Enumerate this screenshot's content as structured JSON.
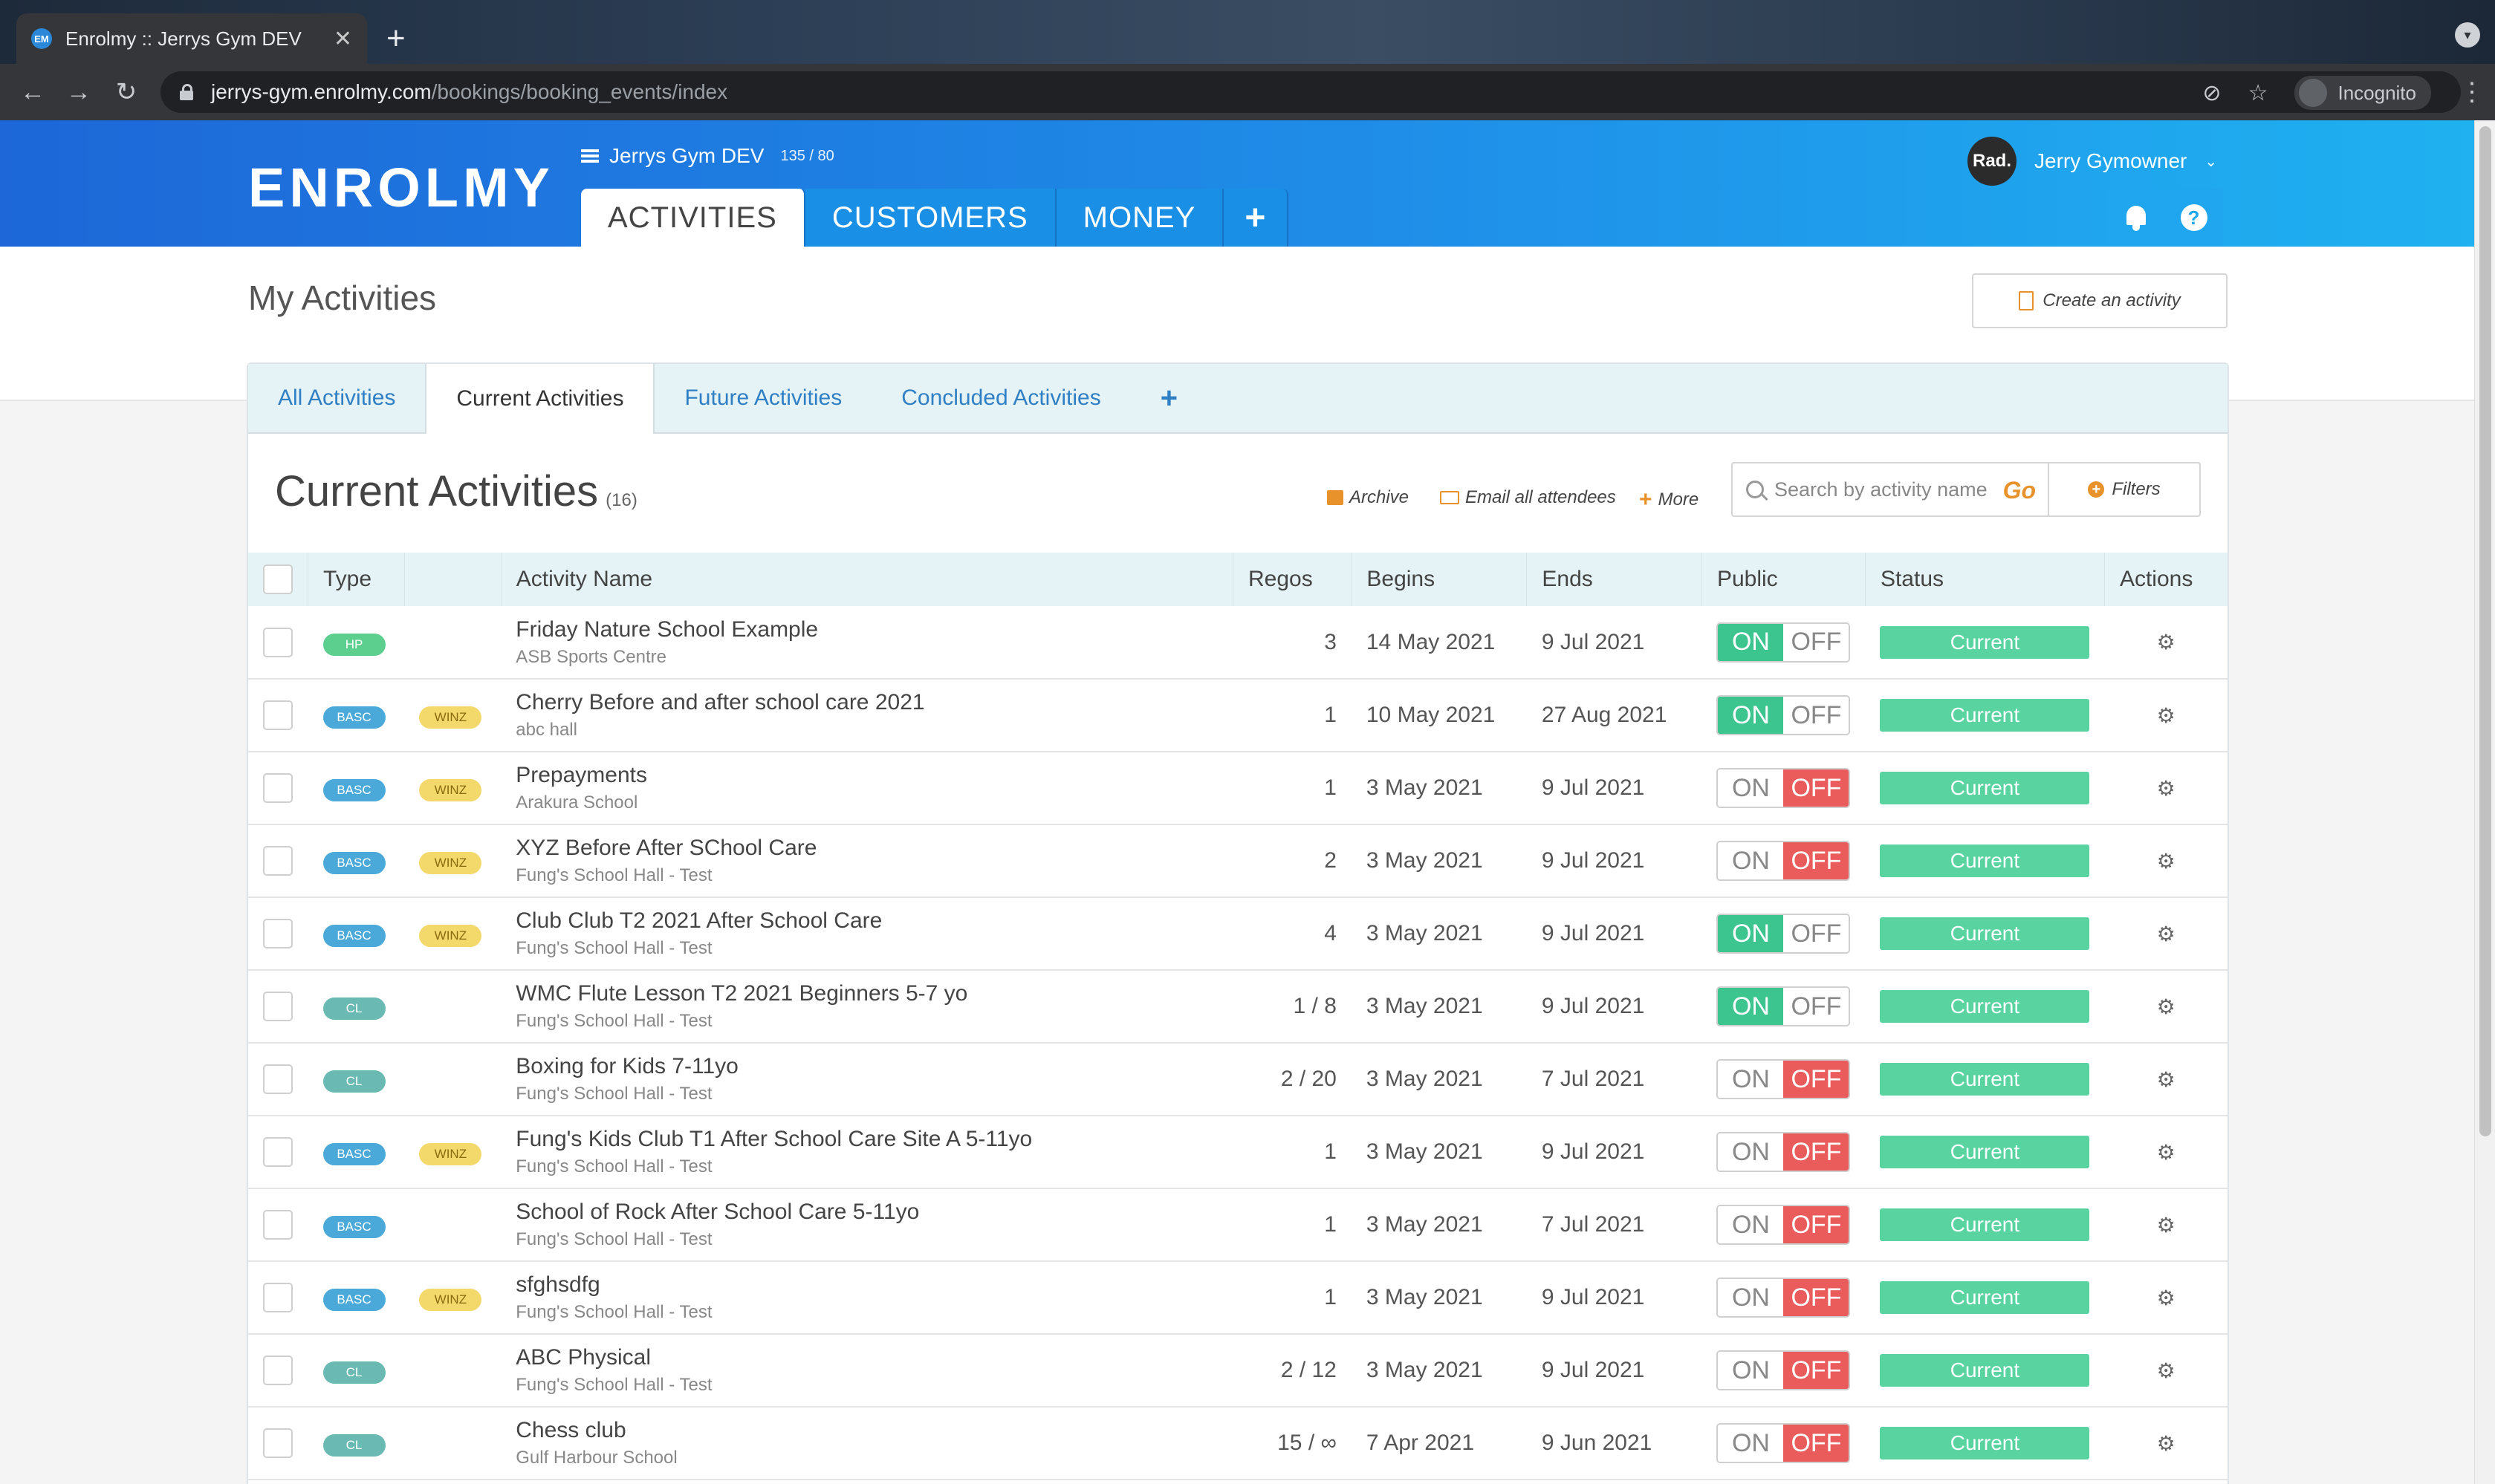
{
  "browser": {
    "tab_title": "Enrolmy :: Jerrys Gym DEV",
    "favicon_text": "EM",
    "new_tab": "+",
    "close": "✕",
    "url_host": "jerrys-gym.enrolmy.com",
    "url_path": "/bookings/booking_events/index",
    "incognito_label": "Incognito"
  },
  "header": {
    "logo": "ENROLMY",
    "org_name": "Jerrys Gym DEV",
    "org_count": "135 / 80",
    "tabs": [
      "ACTIVITIES",
      "CUSTOMERS",
      "MONEY"
    ],
    "plus": "+",
    "user_initials": "Rad.",
    "user_name": "Jerry Gymowner",
    "help": "?"
  },
  "page": {
    "title": "My Activities",
    "create_label": "Create an activity"
  },
  "subtabs": [
    "All Activities",
    "Current Activities",
    "Future Activities",
    "Concluded Activities",
    "+"
  ],
  "list": {
    "title": "Current Activities",
    "count": "(16)",
    "archive_label": "Archive",
    "email_label": "Email all attendees",
    "more_label": "More",
    "search_placeholder": "Search by activity name",
    "go_label": "Go",
    "filters_label": "Filters"
  },
  "columns": [
    "",
    "Type",
    "",
    "Activity Name",
    "Regos",
    "Begins",
    "Ends",
    "Public",
    "Status",
    "Actions"
  ],
  "toggle": {
    "on": "ON",
    "off": "OFF"
  },
  "rows": [
    {
      "type": "HP",
      "tag": "",
      "name": "Friday Nature School Example",
      "venue": "ASB Sports Centre",
      "regos": "3",
      "begins": "14 May 2021",
      "ends": "9 Jul 2021",
      "public": true,
      "status": "Current"
    },
    {
      "type": "BASC",
      "tag": "WINZ",
      "name": "Cherry Before and after school care 2021",
      "venue": "abc hall",
      "regos": "1",
      "begins": "10 May 2021",
      "ends": "27 Aug 2021",
      "public": true,
      "status": "Current"
    },
    {
      "type": "BASC",
      "tag": "WINZ",
      "name": "Prepayments",
      "venue": "Arakura School",
      "regos": "1",
      "begins": "3 May 2021",
      "ends": "9 Jul 2021",
      "public": false,
      "status": "Current"
    },
    {
      "type": "BASC",
      "tag": "WINZ",
      "name": "XYZ Before After SChool Care",
      "venue": "Fung's School Hall - Test",
      "regos": "2",
      "begins": "3 May 2021",
      "ends": "9 Jul 2021",
      "public": false,
      "status": "Current"
    },
    {
      "type": "BASC",
      "tag": "WINZ",
      "name": "Club Club T2 2021 After School Care",
      "venue": "Fung's School Hall - Test",
      "regos": "4",
      "begins": "3 May 2021",
      "ends": "9 Jul 2021",
      "public": true,
      "status": "Current"
    },
    {
      "type": "CL",
      "tag": "",
      "name": "WMC Flute Lesson T2 2021 Beginners 5-7 yo",
      "venue": "Fung's School Hall - Test",
      "regos": "1 / 8",
      "begins": "3 May 2021",
      "ends": "9 Jul 2021",
      "public": true,
      "status": "Current"
    },
    {
      "type": "CL",
      "tag": "",
      "name": "Boxing for Kids 7-11yo",
      "venue": "Fung's School Hall - Test",
      "regos": "2 / 20",
      "begins": "3 May 2021",
      "ends": "7 Jul 2021",
      "public": false,
      "status": "Current"
    },
    {
      "type": "BASC",
      "tag": "WINZ",
      "name": "Fung's Kids Club T1 After School Care Site A 5-11yo",
      "venue": "Fung's School Hall - Test",
      "regos": "1",
      "begins": "3 May 2021",
      "ends": "9 Jul 2021",
      "public": false,
      "status": "Current"
    },
    {
      "type": "BASC",
      "tag": "",
      "name": "School of Rock After School Care 5-11yo",
      "venue": "Fung's School Hall - Test",
      "regos": "1",
      "begins": "3 May 2021",
      "ends": "7 Jul 2021",
      "public": false,
      "status": "Current"
    },
    {
      "type": "BASC",
      "tag": "WINZ",
      "name": "sfghsdfg",
      "venue": "Fung's School Hall - Test",
      "regos": "1",
      "begins": "3 May 2021",
      "ends": "9 Jul 2021",
      "public": false,
      "status": "Current"
    },
    {
      "type": "CL",
      "tag": "",
      "name": "ABC Physical",
      "venue": "Fung's School Hall - Test",
      "regos": "2 / 12",
      "begins": "3 May 2021",
      "ends": "9 Jul 2021",
      "public": false,
      "status": "Current"
    },
    {
      "type": "CL",
      "tag": "",
      "name": "Chess club",
      "venue": "Gulf Harbour School",
      "regos": "15 / ∞",
      "begins": "7 Apr 2021",
      "ends": "9 Jun 2021",
      "public": false,
      "status": "Current"
    }
  ],
  "colors": {
    "header_start": "#1d67d8",
    "header_end": "#1fb1f0",
    "accent_orange": "#e8922b",
    "on_green": "#3cc58e",
    "off_red": "#ea5b5b",
    "status_green": "#59d3a0"
  },
  "icons": {
    "settings": "gear-icon",
    "search": "search-icon",
    "notifications": "bell-icon",
    "help": "help-icon"
  }
}
